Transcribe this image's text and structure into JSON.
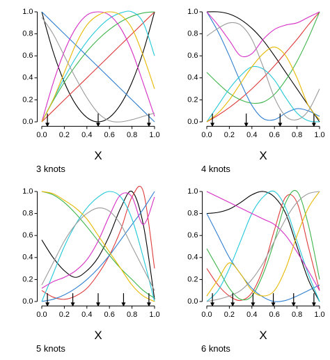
{
  "chart_data": [
    {
      "type": "line",
      "x": [
        0,
        0.1,
        0.2,
        0.3,
        0.4,
        0.5,
        0.6,
        0.7,
        0.8,
        0.9,
        1
      ],
      "xlim": [
        -0.04,
        1.04
      ],
      "ylim": [
        -0.04,
        1.04
      ],
      "xticks": [
        {
          "value": 0,
          "label": "0.0"
        },
        0.2,
        0.4,
        0.6,
        0.8,
        {
          "value": 1,
          "label": "1.0"
        }
      ],
      "yticks": [
        {
          "value": 0,
          "label": "0.0"
        },
        0.2,
        0.4,
        0.6,
        0.8,
        {
          "value": 1,
          "label": "1.0"
        }
      ],
      "xlabel": "X",
      "caption": "3 knots",
      "knots": [
        0.05,
        0.5,
        0.95
      ],
      "series": [
        {
          "color": "#000000",
          "values": [
            1,
            0.64,
            0.36,
            0.16,
            0.04,
            0,
            0.04,
            0.16,
            0.36,
            0.64,
            1
          ]
        },
        {
          "color": "#df3a3a",
          "values": [
            0,
            0.1,
            0.2,
            0.3,
            0.4,
            0.5,
            0.6,
            0.7,
            0.8,
            0.9,
            1
          ]
        },
        {
          "color": "#3cb44b",
          "values": [
            0,
            0.19,
            0.36,
            0.51,
            0.64,
            0.75,
            0.84,
            0.91,
            0.96,
            0.99,
            1
          ]
        },
        {
          "color": "#2f7fd0",
          "values": [
            1,
            0.9,
            0.8,
            0.7,
            0.6,
            0.5,
            0.4,
            0.3,
            0.2,
            0.1,
            0
          ]
        },
        {
          "color": "#22c8d8",
          "values": [
            0,
            0.2,
            0.4,
            0.58,
            0.73,
            0.85,
            0.94,
            0.99,
            1,
            0.9,
            0.6
          ]
        },
        {
          "color": "#d62cc4",
          "values": [
            0,
            0.35,
            0.64,
            0.85,
            0.97,
            1,
            0.97,
            0.85,
            0.64,
            0.35,
            0.05
          ]
        },
        {
          "color": "#e6b800",
          "values": [
            0,
            0.2,
            0.45,
            0.7,
            0.88,
            0.97,
            1,
            0.97,
            0.85,
            0.6,
            0.3
          ]
        },
        {
          "color": "#9a9a9a",
          "values": [
            0.95,
            0.8,
            0.6,
            0.4,
            0.22,
            0.08,
            0.01,
            0,
            0.02,
            0.05,
            0.08
          ]
        }
      ]
    },
    {
      "type": "line",
      "x": [
        0,
        0.1,
        0.2,
        0.3,
        0.4,
        0.5,
        0.6,
        0.7,
        0.8,
        0.9,
        1
      ],
      "xlim": [
        -0.04,
        1.04
      ],
      "ylim": [
        -0.04,
        1.04
      ],
      "xticks": [
        {
          "value": 0,
          "label": "0.0"
        },
        0.2,
        0.4,
        0.6,
        0.8,
        {
          "value": 1,
          "label": "1.0"
        }
      ],
      "yticks": [
        {
          "value": 0,
          "label": "0.0"
        },
        0.2,
        0.4,
        0.6,
        0.8,
        {
          "value": 1,
          "label": "1.0"
        }
      ],
      "xlabel": "X",
      "caption": "4 knots",
      "knots": [
        0.05,
        0.35,
        0.65,
        0.95
      ],
      "series": [
        {
          "color": "#000000",
          "values": [
            1,
            1,
            0.98,
            0.93,
            0.85,
            0.74,
            0.6,
            0.45,
            0.3,
            0.15,
            0
          ]
        },
        {
          "color": "#df3a3a",
          "values": [
            0,
            0.06,
            0.13,
            0.21,
            0.3,
            0.4,
            0.51,
            0.63,
            0.75,
            0.88,
            1
          ]
        },
        {
          "color": "#3cb44b",
          "values": [
            0.45,
            0.35,
            0.26,
            0.2,
            0.17,
            0.18,
            0.25,
            0.38,
            0.55,
            0.76,
            1
          ]
        },
        {
          "color": "#2f7fd0",
          "values": [
            1,
            0.82,
            0.6,
            0.36,
            0.15,
            0.03,
            0.02,
            0.08,
            0.12,
            0.1,
            0.05
          ]
        },
        {
          "color": "#22c8d8",
          "values": [
            0,
            0.15,
            0.3,
            0.42,
            0.5,
            0.48,
            0.38,
            0.22,
            0.08,
            0.01,
            0
          ]
        },
        {
          "color": "#d62cc4",
          "values": [
            1,
            0.88,
            0.74,
            0.6,
            0.62,
            0.75,
            0.84,
            0.88,
            0.9,
            0.95,
            1
          ]
        },
        {
          "color": "#e6b800",
          "values": [
            0,
            0.08,
            0.2,
            0.35,
            0.5,
            0.62,
            0.68,
            0.6,
            0.4,
            0.15,
            0.02
          ]
        },
        {
          "color": "#9a9a9a",
          "values": [
            0.78,
            0.85,
            0.9,
            0.88,
            0.75,
            0.5,
            0.22,
            0.05,
            0.02,
            0.1,
            0.3
          ]
        }
      ]
    },
    {
      "type": "line",
      "x": [
        0,
        0.1,
        0.2,
        0.3,
        0.4,
        0.5,
        0.6,
        0.7,
        0.8,
        0.9,
        1
      ],
      "xlim": [
        -0.04,
        1.04
      ],
      "ylim": [
        -0.04,
        1.04
      ],
      "xticks": [
        {
          "value": 0,
          "label": "0.0"
        },
        0.2,
        0.4,
        0.6,
        0.8,
        {
          "value": 1,
          "label": "1.0"
        }
      ],
      "yticks": [
        {
          "value": 0,
          "label": "0.0"
        },
        0.2,
        0.4,
        0.6,
        0.8,
        {
          "value": 1,
          "label": "1.0"
        }
      ],
      "xlabel": "X",
      "caption": "5 knots",
      "knots": [
        0.05,
        0.275,
        0.5,
        0.725,
        0.95
      ],
      "series": [
        {
          "color": "#000000",
          "values": [
            0.56,
            0.4,
            0.28,
            0.22,
            0.28,
            0.4,
            0.6,
            0.85,
            1,
            0.7,
            0.02
          ]
        },
        {
          "color": "#df3a3a",
          "values": [
            0.1,
            0.04,
            0.02,
            0.05,
            0.12,
            0.25,
            0.42,
            0.65,
            0.95,
            1,
            0.3
          ]
        },
        {
          "color": "#3cb44b",
          "values": [
            1,
            0.97,
            0.9,
            0.8,
            0.68,
            0.55,
            0.42,
            0.3,
            0.2,
            0.1,
            0.03
          ]
        },
        {
          "color": "#2f7fd0",
          "values": [
            0,
            0.02,
            0.06,
            0.12,
            0.2,
            0.3,
            0.42,
            0.56,
            0.7,
            0.84,
            1
          ]
        },
        {
          "color": "#22c8d8",
          "values": [
            0,
            0.25,
            0.5,
            0.7,
            0.85,
            0.95,
            1,
            0.95,
            0.75,
            0.4,
            0
          ]
        },
        {
          "color": "#d62cc4",
          "values": [
            0.12,
            0.18,
            0.22,
            0.28,
            0.38,
            0.55,
            0.78,
            0.97,
            0.95,
            0.7,
            0.95
          ]
        },
        {
          "color": "#e6b800",
          "values": [
            1,
            0.98,
            0.92,
            0.85,
            0.75,
            0.6,
            0.45,
            0.3,
            0.15,
            0.05,
            0
          ]
        },
        {
          "color": "#9a9a9a",
          "values": [
            0.15,
            0.35,
            0.55,
            0.7,
            0.8,
            0.85,
            0.82,
            0.7,
            0.5,
            0.3,
            0.1
          ]
        }
      ]
    },
    {
      "type": "line",
      "x": [
        0,
        0.1,
        0.2,
        0.3,
        0.4,
        0.5,
        0.6,
        0.7,
        0.8,
        0.9,
        1
      ],
      "xlim": [
        -0.04,
        1.04
      ],
      "ylim": [
        -0.04,
        1.04
      ],
      "xticks": [
        {
          "value": 0,
          "label": "0.0"
        },
        0.2,
        0.4,
        0.6,
        0.8,
        {
          "value": 1,
          "label": "1.0"
        }
      ],
      "yticks": [
        {
          "value": 0,
          "label": "0.0"
        },
        0.2,
        0.4,
        0.6,
        0.8,
        {
          "value": 1,
          "label": "1.0"
        }
      ],
      "xlabel": "X",
      "caption": "6 knots",
      "knots": [
        0.05,
        0.23,
        0.41,
        0.59,
        0.77,
        0.95
      ],
      "series": [
        {
          "color": "#000000",
          "values": [
            0.8,
            0.81,
            0.84,
            0.9,
            0.97,
            1,
            0.95,
            0.8,
            0.5,
            0.2,
            0
          ]
        },
        {
          "color": "#df3a3a",
          "values": [
            0.3,
            0.15,
            0.05,
            0.01,
            0.08,
            0.3,
            0.65,
            0.95,
            0.9,
            0.5,
            0.1
          ]
        },
        {
          "color": "#3cb44b",
          "values": [
            0.48,
            0.3,
            0.12,
            0.02,
            0.05,
            0.25,
            0.55,
            0.9,
            1,
            0.7,
            0.2
          ]
        },
        {
          "color": "#2f7fd0",
          "values": [
            0.8,
            0.6,
            0.4,
            0.25,
            0.12,
            0.04,
            0,
            0.01,
            0.05,
            0.1,
            0.15
          ]
        },
        {
          "color": "#22c8d8",
          "values": [
            0,
            0.1,
            0.3,
            0.55,
            0.8,
            0.95,
            1,
            0.85,
            0.55,
            0.25,
            0
          ]
        },
        {
          "color": "#d62cc4",
          "values": [
            1,
            0.95,
            0.9,
            0.85,
            0.8,
            0.75,
            0.7,
            0.6,
            0.45,
            0.28,
            0.1
          ]
        },
        {
          "color": "#e6b800",
          "values": [
            0.05,
            0.2,
            0.35,
            0.25,
            0.1,
            0.05,
            0.1,
            0.3,
            0.6,
            0.85,
            1
          ]
        },
        {
          "color": "#9a9a9a",
          "values": [
            0,
            0.02,
            0.05,
            0.1,
            0.2,
            0.35,
            0.55,
            0.75,
            0.9,
            0.98,
            1
          ]
        }
      ]
    }
  ]
}
